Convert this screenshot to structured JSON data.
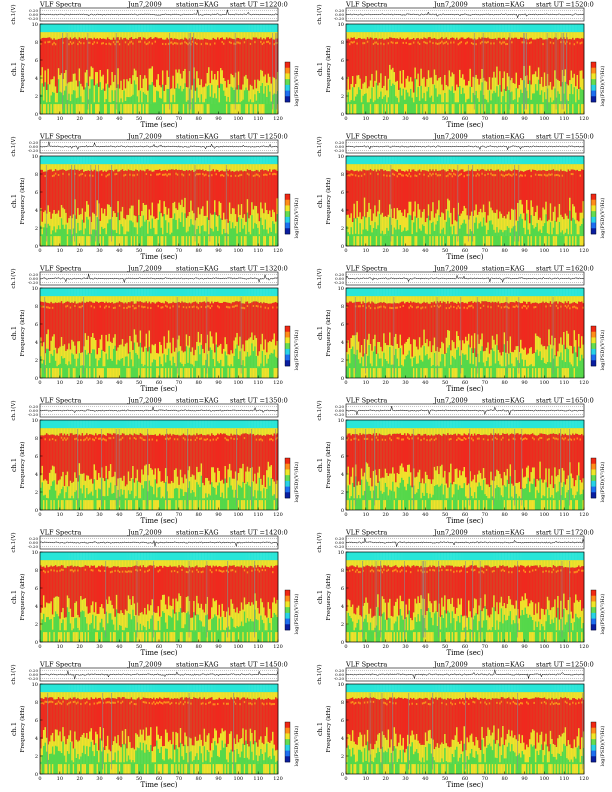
{
  "chart_data": [
    {
      "type": "heatmap",
      "title": "VLF Spectra",
      "date": "Jun7,2009",
      "station": "station=KAG",
      "start_ut": "start UT =1220:0",
      "top_ylabel": "ch.1(V)",
      "top_yticks": [
        "0.20",
        "0.00",
        "-0.20"
      ],
      "ylabel": "Frequency (kHz)",
      "channel_label": "ch.1",
      "yticks": [
        "0",
        "2",
        "4",
        "6",
        "8",
        "10"
      ],
      "ylim": [
        0,
        10
      ],
      "xlabel": "Time (sec)",
      "xticks": [
        "0",
        "10",
        "20",
        "30",
        "40",
        "50",
        "60",
        "70",
        "80",
        "90",
        "100",
        "110",
        "120"
      ],
      "xlim": [
        0,
        120
      ],
      "colorbar_label": "log(PSD)(V²/Hz)"
    },
    {
      "type": "heatmap",
      "title": "VLF Spectra",
      "date": "Jun7,2009",
      "station": "station=KAG",
      "start_ut": "start UT =1250:0",
      "top_ylabel": "ch.1(V)",
      "top_yticks": [
        "0.20",
        "0.00",
        "-0.20"
      ],
      "ylabel": "Frequency (kHz)",
      "channel_label": "ch.1",
      "yticks": [
        "0",
        "2",
        "4",
        "6",
        "8",
        "10"
      ],
      "ylim": [
        0,
        10
      ],
      "xlabel": "Time (sec)",
      "xticks": [
        "0",
        "10",
        "20",
        "30",
        "40",
        "50",
        "60",
        "70",
        "80",
        "90",
        "100",
        "110",
        "120"
      ],
      "xlim": [
        0,
        120
      ],
      "colorbar_label": "log(PSD)(V²/Hz)"
    },
    {
      "type": "heatmap",
      "title": "VLF Spectra",
      "date": "Jun7,2009",
      "station": "station=KAG",
      "start_ut": "start UT =1320:0",
      "top_ylabel": "ch.1(V)",
      "top_yticks": [
        "0.20",
        "0.00",
        "-0.20"
      ],
      "ylabel": "Frequency (kHz)",
      "channel_label": "ch.1",
      "yticks": [
        "0",
        "2",
        "4",
        "6",
        "8",
        "10"
      ],
      "ylim": [
        0,
        10
      ],
      "xlabel": "Time (sec)",
      "xticks": [
        "0",
        "10",
        "20",
        "30",
        "40",
        "50",
        "60",
        "70",
        "80",
        "90",
        "100",
        "110",
        "120"
      ],
      "xlim": [
        0,
        120
      ],
      "colorbar_label": "log(PSD)(V²/Hz)"
    },
    {
      "type": "heatmap",
      "title": "VLF Spectra",
      "date": "Jun7,2009",
      "station": "station=KAG",
      "start_ut": "start UT =1350:0",
      "top_ylabel": "ch.1(V)",
      "top_yticks": [
        "0.20",
        "0.00",
        "-0.20"
      ],
      "ylabel": "Frequency (kHz)",
      "channel_label": "ch.1",
      "yticks": [
        "0",
        "2",
        "4",
        "6",
        "8",
        "10"
      ],
      "ylim": [
        0,
        10
      ],
      "xlabel": "Time (sec)",
      "xticks": [
        "0",
        "10",
        "20",
        "30",
        "40",
        "50",
        "60",
        "70",
        "80",
        "90",
        "100",
        "110",
        "120"
      ],
      "xlim": [
        0,
        120
      ],
      "colorbar_label": "log(PSD)(V²/Hz)"
    },
    {
      "type": "heatmap",
      "title": "VLF Spectra",
      "date": "Jun7,2009",
      "station": "station=KAG",
      "start_ut": "start UT =1420:0",
      "top_ylabel": "ch.1(V)",
      "top_yticks": [
        "0.20",
        "0.00",
        "-0.20"
      ],
      "ylabel": "Frequency (kHz)",
      "channel_label": "ch.1",
      "yticks": [
        "0",
        "2",
        "4",
        "6",
        "8",
        "10"
      ],
      "ylim": [
        0,
        10
      ],
      "xlabel": "Time (sec)",
      "xticks": [
        "0",
        "10",
        "20",
        "30",
        "40",
        "50",
        "60",
        "70",
        "80",
        "90",
        "100",
        "110",
        "120"
      ],
      "xlim": [
        0,
        120
      ],
      "colorbar_label": "log(PSD)(V²/Hz)"
    },
    {
      "type": "heatmap",
      "title": "VLF Spectra",
      "date": "Jun7,2009",
      "station": "station=KAG",
      "start_ut": "start UT =1450:0",
      "top_ylabel": "ch.1(V)",
      "top_yticks": [
        "0.20",
        "0.00",
        "-0.20"
      ],
      "ylabel": "Frequency (kHz)",
      "channel_label": "ch.1",
      "yticks": [
        "0",
        "2",
        "4",
        "6",
        "8",
        "10"
      ],
      "ylim": [
        0,
        10
      ],
      "xlabel": "Time (sec)",
      "xticks": [
        "0",
        "10",
        "20",
        "30",
        "40",
        "50",
        "60",
        "70",
        "80",
        "90",
        "100",
        "110",
        "120"
      ],
      "xlim": [
        0,
        120
      ],
      "colorbar_label": "log(PSD)(V²/Hz)"
    },
    {
      "type": "heatmap",
      "title": "VLF Spectra",
      "date": "Jun7,2009",
      "station": "station=KAG",
      "start_ut": "start UT =1520:0",
      "top_ylabel": "ch.1(V)",
      "top_yticks": [
        "0.20",
        "0.00",
        "-0.20"
      ],
      "ylabel": "Frequency (kHz)",
      "channel_label": "ch.1",
      "yticks": [
        "0",
        "2",
        "4",
        "6",
        "8",
        "10"
      ],
      "ylim": [
        0,
        10
      ],
      "xlabel": "Time (sec)",
      "xticks": [
        "0",
        "10",
        "20",
        "30",
        "40",
        "50",
        "60",
        "70",
        "80",
        "90",
        "100",
        "110",
        "120"
      ],
      "xlim": [
        0,
        120
      ],
      "colorbar_label": "log(PSD)(V²/Hz)"
    },
    {
      "type": "heatmap",
      "title": "VLF Spectra",
      "date": "Jun7,2009",
      "station": "station=KAG",
      "start_ut": "start UT =1550:0",
      "top_ylabel": "ch.1(V)",
      "top_yticks": [
        "0.20",
        "0.00",
        "-0.20"
      ],
      "ylabel": "Frequency (kHz)",
      "channel_label": "ch.1",
      "yticks": [
        "0",
        "2",
        "4",
        "6",
        "8",
        "10"
      ],
      "ylim": [
        0,
        10
      ],
      "xlabel": "Time (sec)",
      "xticks": [
        "0",
        "10",
        "20",
        "30",
        "40",
        "50",
        "60",
        "70",
        "80",
        "90",
        "100",
        "110",
        "120"
      ],
      "xlim": [
        0,
        120
      ],
      "colorbar_label": "log(PSD)(V²/Hz)"
    },
    {
      "type": "heatmap",
      "title": "VLF Spectra",
      "date": "Jun7,2009",
      "station": "station=KAG",
      "start_ut": "start UT =1620:0",
      "top_ylabel": "ch.1(V)",
      "top_yticks": [
        "0.20",
        "0.00",
        "-0.20"
      ],
      "ylabel": "Frequency (kHz)",
      "channel_label": "ch.1",
      "yticks": [
        "0",
        "2",
        "4",
        "6",
        "8",
        "10"
      ],
      "ylim": [
        0,
        10
      ],
      "xlabel": "Time (sec)",
      "xticks": [
        "0",
        "10",
        "20",
        "30",
        "40",
        "50",
        "60",
        "70",
        "80",
        "90",
        "100",
        "110",
        "120"
      ],
      "xlim": [
        0,
        120
      ],
      "colorbar_label": "log(PSD)(V²/Hz)"
    },
    {
      "type": "heatmap",
      "title": "VLF Spectra",
      "date": "Jun7,2009",
      "station": "station=KAG",
      "start_ut": "start UT =1650:0",
      "top_ylabel": "ch.1(V)",
      "top_yticks": [
        "0.20",
        "0.00",
        "-0.20"
      ],
      "ylabel": "Frequency (kHz)",
      "channel_label": "ch.1",
      "yticks": [
        "0",
        "2",
        "4",
        "6",
        "8",
        "10"
      ],
      "ylim": [
        0,
        10
      ],
      "xlabel": "Time (sec)",
      "xticks": [
        "0",
        "10",
        "20",
        "30",
        "40",
        "50",
        "60",
        "70",
        "80",
        "90",
        "100",
        "110",
        "120"
      ],
      "xlim": [
        0,
        120
      ],
      "colorbar_label": "log(PSD)(V²/Hz)"
    },
    {
      "type": "heatmap",
      "title": "VLF Spectra",
      "date": "Jun7,2009",
      "station": "station=KAG",
      "start_ut": "start UT =1720:0",
      "top_ylabel": "ch.1(V)",
      "top_yticks": [
        "0.20",
        "0.00",
        "-0.20"
      ],
      "ylabel": "Frequency (kHz)",
      "channel_label": "ch.1",
      "yticks": [
        "0",
        "2",
        "4",
        "6",
        "8",
        "10"
      ],
      "ylim": [
        0,
        10
      ],
      "xlabel": "Time (sec)",
      "xticks": [
        "0",
        "10",
        "20",
        "30",
        "40",
        "50",
        "60",
        "70",
        "80",
        "90",
        "100",
        "110",
        "120"
      ],
      "xlim": [
        0,
        120
      ],
      "colorbar_label": "log(PSD)(V²/Hz)"
    },
    {
      "type": "heatmap",
      "title": "VLF Spectra",
      "date": "Jun7,2009",
      "station": "station=KAG",
      "start_ut": "start UT =1250:0",
      "top_ylabel": "ch.1(V)",
      "top_yticks": [
        "0.20",
        "0.00",
        "-0.20"
      ],
      "ylabel": "Frequency (kHz)",
      "channel_label": "ch.1",
      "yticks": [
        "0",
        "2",
        "4",
        "6",
        "8",
        "10"
      ],
      "ylim": [
        0,
        10
      ],
      "xlabel": "Time (sec)",
      "xticks": [
        "0",
        "10",
        "20",
        "30",
        "40",
        "50",
        "60",
        "70",
        "80",
        "90",
        "100",
        "110",
        "120"
      ],
      "xlim": [
        0,
        120
      ],
      "colorbar_label": "log(PSD)(V²/Hz)"
    }
  ],
  "colors": {
    "cyan": "#28e6d8",
    "green": "#55d84a",
    "yellow": "#f2e02a",
    "orange": "#ff8c1a",
    "red": "#f0281e",
    "grey": "#8c8c8c",
    "colorbar": [
      "#0a1ea0",
      "#1e6ef0",
      "#28d2e6",
      "#64dc50",
      "#f0e628",
      "#ff8c1a",
      "#f02814"
    ]
  }
}
